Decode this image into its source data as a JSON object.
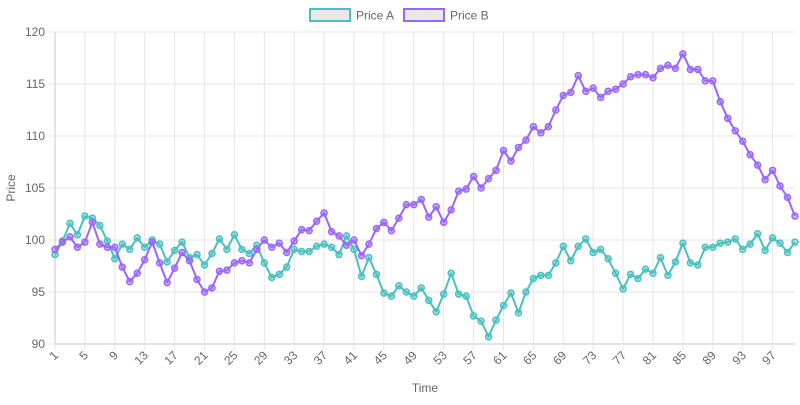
{
  "chart_data": {
    "type": "line",
    "title": "",
    "xlabel": "Time",
    "ylabel": "Price",
    "ylim": [
      90,
      120
    ],
    "yticks": [
      90,
      95,
      100,
      105,
      110,
      115,
      120
    ],
    "x": [
      1,
      2,
      3,
      4,
      5,
      6,
      7,
      8,
      9,
      10,
      11,
      12,
      13,
      14,
      15,
      16,
      17,
      18,
      19,
      20,
      21,
      22,
      23,
      24,
      25,
      26,
      27,
      28,
      29,
      30,
      31,
      32,
      33,
      34,
      35,
      36,
      37,
      38,
      39,
      40,
      41,
      42,
      43,
      44,
      45,
      46,
      47,
      48,
      49,
      50,
      51,
      52,
      53,
      54,
      55,
      56,
      57,
      58,
      59,
      60,
      61,
      62,
      63,
      64,
      65,
      66,
      67,
      68,
      69,
      70,
      71,
      72,
      73,
      74,
      75,
      76,
      77,
      78,
      79,
      80,
      81,
      82,
      83,
      84,
      85,
      86,
      87,
      88,
      89,
      90,
      91,
      92,
      93,
      94,
      95,
      96,
      97,
      98,
      99,
      100
    ],
    "xtick_labels": [
      "1",
      "5",
      "9",
      "13",
      "17",
      "21",
      "25",
      "29",
      "33",
      "37",
      "41",
      "45",
      "49",
      "53",
      "57",
      "61",
      "65",
      "69",
      "73",
      "77",
      "81",
      "85",
      "89",
      "93",
      "97"
    ],
    "grid": true,
    "legend_position": "top-center",
    "series": [
      {
        "name": "Price A",
        "color": "#4bc0c0",
        "values": [
          98.6,
          99.9,
          101.6,
          100.5,
          102.3,
          102.1,
          101.4,
          99.9,
          98.2,
          99.6,
          99.1,
          100.2,
          99.3,
          100.0,
          99.6,
          97.9,
          99.0,
          99.8,
          98.3,
          98.6,
          97.6,
          98.7,
          100.1,
          99.1,
          100.5,
          99.1,
          98.7,
          99.5,
          97.8,
          96.4,
          96.7,
          97.4,
          99.1,
          98.9,
          98.9,
          99.4,
          99.6,
          99.3,
          98.6,
          100.4,
          99.1,
          96.5,
          98.3,
          96.7,
          94.9,
          94.6,
          95.6,
          95.0,
          94.6,
          95.4,
          94.2,
          93.1,
          94.8,
          96.8,
          94.8,
          94.6,
          92.7,
          92.2,
          90.7,
          92.3,
          93.7,
          94.9,
          93.0,
          95.0,
          96.3,
          96.6,
          96.6,
          97.8,
          99.4,
          98.0,
          99.4,
          100.1,
          98.8,
          99.1,
          98.2,
          96.8,
          95.3,
          96.7,
          96.3,
          97.2,
          96.8,
          98.3,
          96.6,
          97.9,
          99.7,
          97.8,
          97.6,
          99.3,
          99.3,
          99.7,
          99.8,
          100.1,
          99.1,
          99.6,
          100.6,
          99.0,
          100.2,
          99.7,
          98.8,
          99.8
        ]
      },
      {
        "name": "Price B",
        "color": "#9966ff",
        "values": [
          99.1,
          99.8,
          100.3,
          99.3,
          99.8,
          101.7,
          99.6,
          99.3,
          99.3,
          97.4,
          96.0,
          96.8,
          98.1,
          99.8,
          97.8,
          95.9,
          97.3,
          98.8,
          98.0,
          96.2,
          95.0,
          95.4,
          97.0,
          97.1,
          97.8,
          98.0,
          97.8,
          99.1,
          100.0,
          99.3,
          99.7,
          98.8,
          99.9,
          101.0,
          100.9,
          101.8,
          102.6,
          100.8,
          100.4,
          99.5,
          100.0,
          98.5,
          99.6,
          101.1,
          101.7,
          100.9,
          102.1,
          103.4,
          103.4,
          103.9,
          102.2,
          103.2,
          101.7,
          102.9,
          104.7,
          104.9,
          106.1,
          105.0,
          105.9,
          106.7,
          108.6,
          107.6,
          108.9,
          109.6,
          110.9,
          110.3,
          110.9,
          112.5,
          113.9,
          114.2,
          115.8,
          114.3,
          114.6,
          113.7,
          114.3,
          114.5,
          115.0,
          115.7,
          115.9,
          115.9,
          115.6,
          116.5,
          116.8,
          116.5,
          117.9,
          116.4,
          116.4,
          115.3,
          115.3,
          113.3,
          111.7,
          110.5,
          109.5,
          108.2,
          107.2,
          105.8,
          106.7,
          105.2,
          104.1,
          102.3
        ]
      }
    ]
  }
}
